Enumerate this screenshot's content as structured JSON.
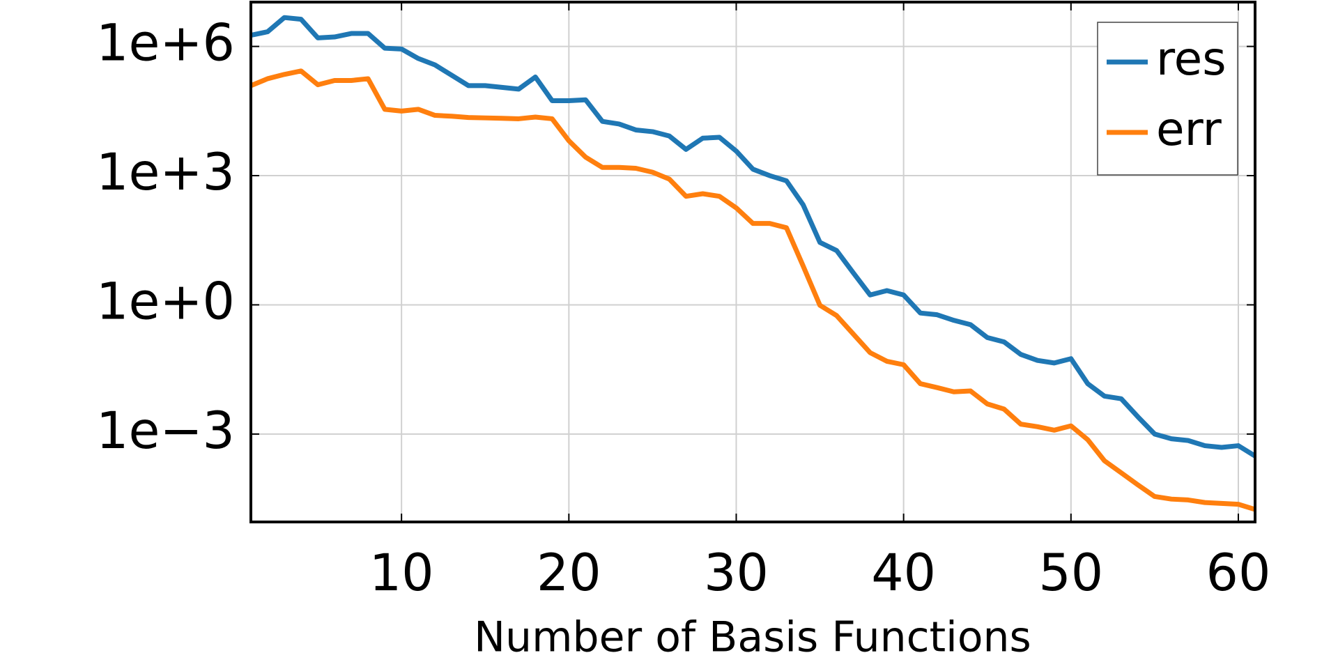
{
  "chart_data": {
    "type": "line",
    "x_label": "Number of Basis Functions",
    "log_y": true,
    "grid": true,
    "legend": "upper right",
    "xlim": [
      1,
      61
    ],
    "xticks": [
      10,
      20,
      30,
      40,
      50,
      60
    ],
    "ylim": [
      9.1e-06,
      10700000.0
    ],
    "yticks": [
      {
        "value": 1000000.0,
        "label": "1e+6"
      },
      {
        "value": 1000.0,
        "label": "1e+3"
      },
      {
        "value": 1,
        "label": "1e+0"
      },
      {
        "value": 0.001,
        "label": "1e−3"
      }
    ],
    "x": [
      1,
      2,
      3,
      4,
      5,
      6,
      7,
      8,
      9,
      10,
      11,
      12,
      13,
      14,
      15,
      16,
      17,
      18,
      19,
      20,
      21,
      22,
      23,
      24,
      25,
      26,
      27,
      28,
      29,
      30,
      31,
      32,
      33,
      34,
      35,
      36,
      37,
      38,
      39,
      40,
      41,
      42,
      43,
      44,
      45,
      46,
      47,
      48,
      49,
      50,
      51,
      52,
      53,
      54,
      55,
      56,
      57,
      58,
      59,
      60,
      61
    ],
    "series": [
      {
        "name": "res",
        "color": "#1f77b4",
        "values": [
          1820000.0,
          2190000.0,
          4680000.0,
          4270000.0,
          1580000.0,
          1660000.0,
          2000000.0,
          2000000.0,
          912000.0,
          871000.0,
          525000.0,
          372000.0,
          214000.0,
          123000.0,
          123000.0,
          112000.0,
          102000.0,
          195000.0,
          55000.0,
          55000.0,
          57500.0,
          18200.0,
          15800.0,
          11500.0,
          10500.0,
          8320.0,
          4070.0,
          7410.0,
          7760.0,
          3720.0,
          1410.0,
          1000.0,
          759,
          209,
          28.2,
          18.2,
          5.5,
          1.7,
          2.14,
          1.7,
          0.646,
          0.589,
          0.437,
          0.347,
          0.174,
          0.138,
          0.0708,
          0.0513,
          0.0447,
          0.0562,
          0.0148,
          0.00759,
          0.00661,
          0.00251,
          0.001,
          0.000776,
          0.000708,
          0.000537,
          0.00049,
          0.000537,
          0.000309
        ]
      },
      {
        "name": "err",
        "color": "#ff7f0e",
        "values": [
          123000.0,
          178000.0,
          224000.0,
          269000.0,
          129000.0,
          162000.0,
          162000.0,
          178000.0,
          34700.0,
          31600.0,
          34700.0,
          25100.0,
          24000.0,
          22400.0,
          21900.0,
          21400.0,
          20900.0,
          22900.0,
          20900.0,
          6460.0,
          2690.0,
          1550.0,
          1550.0,
          1480.0,
          1200.0,
          832,
          331,
          380,
          331,
          178,
          77.6,
          77.6,
          61.7,
          7.94,
          0.977,
          0.562,
          0.209,
          0.0776,
          0.049,
          0.0407,
          0.0148,
          0.012,
          0.00955,
          0.01,
          0.00501,
          0.0038,
          0.0017,
          0.00148,
          0.00123,
          0.00155,
          0.000741,
          0.00024,
          0.000126,
          6.61e-05,
          3.55e-05,
          3.09e-05,
          2.95e-05,
          2.57e-05,
          2.45e-05,
          2.34e-05,
          1.78e-05
        ]
      }
    ]
  }
}
